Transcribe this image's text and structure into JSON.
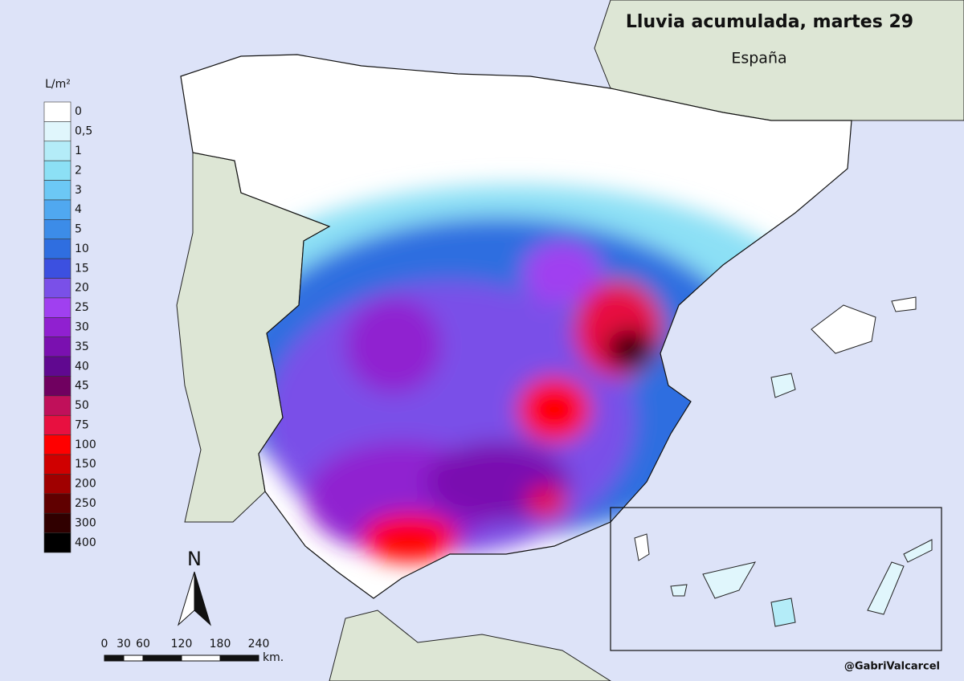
{
  "title": "Lluvia acumulada, martes 29",
  "subtitle": "España",
  "legend": {
    "unit": "L/m²",
    "items": [
      {
        "label": "0",
        "color": "#ffffff"
      },
      {
        "label": "0,5",
        "color": "#e0f6fc"
      },
      {
        "label": "1",
        "color": "#b4ecf8"
      },
      {
        "label": "2",
        "color": "#8ce0f5"
      },
      {
        "label": "3",
        "color": "#6cc8f5"
      },
      {
        "label": "4",
        "color": "#50a8f0"
      },
      {
        "label": "5",
        "color": "#3c8ce8"
      },
      {
        "label": "10",
        "color": "#2f6ee0"
      },
      {
        "label": "15",
        "color": "#3c50e0"
      },
      {
        "label": "20",
        "color": "#7a50e8"
      },
      {
        "label": "25",
        "color": "#a040f0"
      },
      {
        "label": "30",
        "color": "#9020d0"
      },
      {
        "label": "35",
        "color": "#7a10b0"
      },
      {
        "label": "40",
        "color": "#600890"
      },
      {
        "label": "45",
        "color": "#700060"
      },
      {
        "label": "50",
        "color": "#c0105a"
      },
      {
        "label": "75",
        "color": "#e81040"
      },
      {
        "label": "100",
        "color": "#ff0000"
      },
      {
        "label": "150",
        "color": "#d00000"
      },
      {
        "label": "200",
        "color": "#a00000"
      },
      {
        "label": "250",
        "color": "#600000"
      },
      {
        "label": "300",
        "color": "#300000"
      },
      {
        "label": "400",
        "color": "#000000"
      }
    ]
  },
  "north": "N",
  "scale": {
    "labels": [
      "0",
      "30",
      "60",
      "120",
      "180",
      "240"
    ],
    "unit": "km."
  },
  "credit": "@GabriValcarcel"
}
